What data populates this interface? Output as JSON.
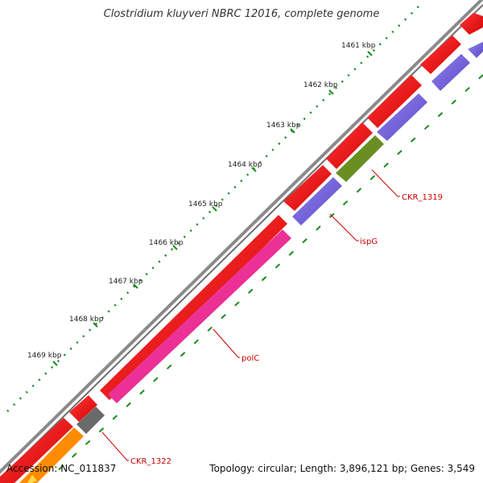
{
  "title": "Clostridium kluyveri NBRC 12016, complete genome",
  "footer": {
    "accession_label": "Accession:",
    "accession": "NC_011837",
    "topology_label": "Topology:",
    "topology": "circular",
    "length_label": "Length:",
    "length": "3,896,121 bp",
    "genes_label": "Genes:",
    "genes": "3,549"
  },
  "ruler": {
    "ticks": [
      "1461 kbp",
      "1462 kbp",
      "1463 kbp",
      "1464 kbp",
      "1465 kbp",
      "1466 kbp",
      "1467 kbp",
      "1468 kbp",
      "1469 kbp"
    ]
  },
  "gene_labels": [
    "CKR_1319",
    "ispG",
    "polC",
    "CKR_1322"
  ],
  "colors": {
    "backbone": "#7f7f7f",
    "outer_strand_gene": "#ee0000",
    "polC": "#ee1a8c",
    "ispG": "#6a5acd",
    "CKR_1319": "#6b8e23",
    "CKR_1322": "#666666",
    "orange_gene": "#ff8c00",
    "tick": "#1a8a1a",
    "label": "#cc0000"
  }
}
